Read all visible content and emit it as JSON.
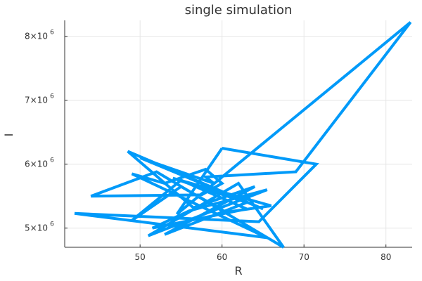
{
  "chart_data": {
    "type": "line",
    "title": "single simulation",
    "xlabel": "R",
    "ylabel": "I",
    "xlim": [
      40.8,
      83.2
    ],
    "ylim": [
      4700000,
      8250000
    ],
    "grid": true,
    "legend": "none",
    "x_ticks": [
      {
        "value": 50,
        "label": "50"
      },
      {
        "value": 60,
        "label": "60"
      },
      {
        "value": 70,
        "label": "70"
      },
      {
        "value": 80,
        "label": "80"
      }
    ],
    "y_ticks": [
      {
        "value": 5000000,
        "label": "5×10",
        "exponent": "6"
      },
      {
        "value": 6000000,
        "label": "6×10",
        "exponent": "6"
      },
      {
        "value": 7000000,
        "label": "7×10",
        "exponent": "6"
      },
      {
        "value": 8000000,
        "label": "8×10",
        "exponent": "6"
      }
    ],
    "series": [
      {
        "color": "#009AF9",
        "x": [
          60.0,
          71.5,
          64.5,
          42.0,
          65.5,
          49.0,
          53.0,
          58.0,
          60.0,
          57.5,
          44.0,
          52.0,
          67.5,
          62.0,
          51.0,
          65.5,
          56.0,
          51.5,
          63.0,
          55.0,
          49.0,
          55.0,
          60.5,
          66.0,
          54.0,
          63.0,
          53.0,
          64.0,
          56.5,
          48.5,
          65.0,
          50.0,
          59.0,
          58.0,
          69.0,
          83.0,
          54.5,
          60.0
        ],
        "y": [
          6250000,
          6000000,
          5100000,
          5230000,
          4850000,
          5850000,
          5700000,
          5920000,
          5700000,
          5520000,
          5500000,
          5880000,
          4700000,
          5700000,
          4880000,
          5600000,
          5270000,
          5000000,
          5300000,
          5750000,
          5120000,
          5650000,
          5250000,
          5350000,
          5780000,
          5400000,
          4900000,
          5650000,
          5320000,
          6200000,
          5300000,
          6100000,
          5700000,
          5800000,
          5880000,
          8220000,
          5220000,
          6250000
        ]
      }
    ]
  }
}
